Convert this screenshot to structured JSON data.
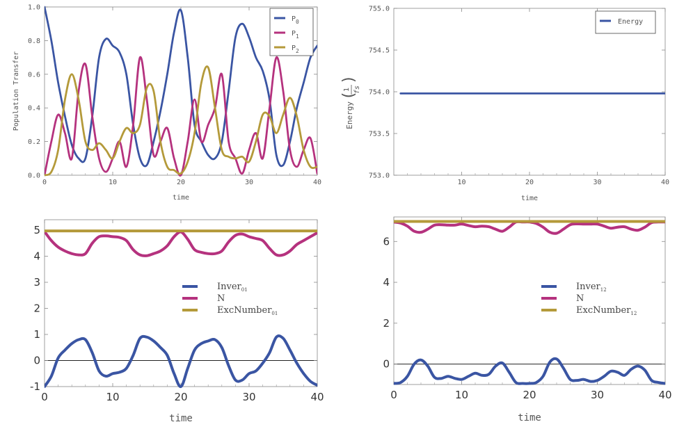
{
  "colors": {
    "p0": "#3a55a3",
    "p1": "#b5327e",
    "p2": "#b49a3a"
  },
  "chart_data": [
    {
      "type": "line",
      "title": "",
      "xlabel": "time",
      "ylabel": "Population Transfer",
      "xlim": [
        0,
        40
      ],
      "ylim": [
        0,
        1
      ],
      "xticks": [
        "0",
        "10",
        "20",
        "30",
        "40"
      ],
      "yticks": [
        "0.0",
        "0.2",
        "0.4",
        "0.6",
        "0.8",
        "1.0"
      ],
      "legend_position": "top-right",
      "series": [
        {
          "name": "P",
          "sub": "0",
          "color_key": "p0",
          "x": [
            0,
            1,
            2,
            3,
            4,
            5,
            6,
            7,
            8,
            9,
            10,
            11,
            12,
            13,
            14,
            15,
            16,
            17,
            18,
            19,
            20,
            21,
            22,
            23,
            24,
            25,
            26,
            27,
            28,
            29,
            30,
            31,
            32,
            33,
            34,
            35,
            36,
            37,
            38,
            39,
            40
          ],
          "values": [
            1.0,
            0.8,
            0.55,
            0.35,
            0.18,
            0.1,
            0.1,
            0.35,
            0.7,
            0.81,
            0.77,
            0.73,
            0.6,
            0.3,
            0.1,
            0.06,
            0.2,
            0.38,
            0.6,
            0.85,
            0.98,
            0.7,
            0.3,
            0.2,
            0.12,
            0.1,
            0.2,
            0.5,
            0.82,
            0.9,
            0.82,
            0.7,
            0.62,
            0.45,
            0.12,
            0.06,
            0.2,
            0.4,
            0.55,
            0.7,
            0.77
          ]
        },
        {
          "name": "P",
          "sub": "1",
          "color_key": "p1",
          "x": [
            0,
            1,
            2,
            3,
            4,
            5,
            6,
            7,
            8,
            9,
            10,
            11,
            12,
            13,
            14,
            15,
            16,
            17,
            18,
            19,
            20,
            21,
            22,
            23,
            24,
            25,
            26,
            27,
            28,
            29,
            30,
            31,
            32,
            33,
            34,
            35,
            36,
            37,
            38,
            39,
            40
          ],
          "values": [
            0.0,
            0.2,
            0.36,
            0.25,
            0.1,
            0.5,
            0.66,
            0.35,
            0.1,
            0.02,
            0.1,
            0.2,
            0.05,
            0.3,
            0.7,
            0.45,
            0.12,
            0.2,
            0.28,
            0.1,
            0.0,
            0.2,
            0.45,
            0.2,
            0.3,
            0.4,
            0.6,
            0.2,
            0.1,
            0.01,
            0.15,
            0.25,
            0.1,
            0.4,
            0.7,
            0.5,
            0.15,
            0.05,
            0.15,
            0.22,
            0.01
          ]
        },
        {
          "name": "P",
          "sub": "2",
          "color_key": "p2",
          "x": [
            0,
            1,
            2,
            3,
            4,
            5,
            6,
            7,
            8,
            9,
            10,
            11,
            12,
            13,
            14,
            15,
            16,
            17,
            18,
            19,
            20,
            21,
            22,
            23,
            24,
            25,
            26,
            27,
            28,
            29,
            30,
            31,
            32,
            33,
            34,
            35,
            36,
            37,
            38,
            39,
            40
          ],
          "values": [
            0.0,
            0.02,
            0.15,
            0.45,
            0.6,
            0.45,
            0.2,
            0.15,
            0.19,
            0.15,
            0.1,
            0.2,
            0.28,
            0.25,
            0.3,
            0.52,
            0.5,
            0.2,
            0.05,
            0.03,
            0.01,
            0.08,
            0.25,
            0.55,
            0.64,
            0.4,
            0.15,
            0.11,
            0.1,
            0.11,
            0.08,
            0.2,
            0.36,
            0.35,
            0.25,
            0.36,
            0.46,
            0.35,
            0.15,
            0.05,
            0.05
          ]
        }
      ]
    },
    {
      "type": "line",
      "title": "",
      "xlabel": "time",
      "ylabel": "Energy",
      "ylabel_unit_num": "1",
      "ylabel_unit_den": "fs",
      "xlim": [
        0,
        40
      ],
      "ylim": [
        753.0,
        755.0
      ],
      "xticks": [
        "10",
        "20",
        "30",
        "40"
      ],
      "yticks": [
        "753.0",
        "753.5",
        "754.0",
        "754.5",
        "755.0"
      ],
      "legend_position": "top-right",
      "series": [
        {
          "name": "Energy",
          "color_key": "p0",
          "x": [
            1,
            40
          ],
          "values": [
            753.98,
            753.98
          ]
        }
      ]
    },
    {
      "type": "line",
      "title": "",
      "xlabel": "time",
      "ylabel": "",
      "xlim": [
        0,
        40
      ],
      "ylim": [
        -1,
        5.4
      ],
      "xticks": [
        "0",
        "10",
        "20",
        "30",
        "40"
      ],
      "yticks": [
        "-1",
        "0",
        "1",
        "2",
        "3",
        "4",
        "5"
      ],
      "legend_position": "center-right",
      "series": [
        {
          "name": "Inver",
          "sub": "01",
          "color_key": "p0",
          "x": [
            0,
            1,
            2,
            3,
            4,
            5,
            6,
            7,
            8,
            9,
            10,
            11,
            12,
            13,
            14,
            15,
            16,
            17,
            18,
            19,
            20,
            21,
            22,
            23,
            24,
            25,
            26,
            27,
            28,
            29,
            30,
            31,
            32,
            33,
            34,
            35,
            36,
            37,
            38,
            39,
            40
          ],
          "values": [
            -1.0,
            -0.6,
            0.1,
            0.4,
            0.65,
            0.8,
            0.8,
            0.3,
            -0.4,
            -0.6,
            -0.5,
            -0.45,
            -0.3,
            0.2,
            0.85,
            0.9,
            0.75,
            0.5,
            0.2,
            -0.5,
            -1.0,
            -0.3,
            0.4,
            0.65,
            0.75,
            0.8,
            0.5,
            -0.2,
            -0.75,
            -0.75,
            -0.5,
            -0.4,
            -0.1,
            0.3,
            0.9,
            0.85,
            0.4,
            -0.1,
            -0.5,
            -0.8,
            -0.95
          ]
        },
        {
          "name": "N",
          "sub": "",
          "color_key": "p1",
          "x": [
            0,
            1,
            2,
            3,
            4,
            5,
            6,
            7,
            8,
            9,
            10,
            11,
            12,
            13,
            14,
            15,
            16,
            17,
            18,
            19,
            20,
            21,
            22,
            23,
            24,
            25,
            26,
            27,
            28,
            29,
            30,
            31,
            32,
            33,
            34,
            35,
            36,
            37,
            38,
            39,
            40
          ],
          "values": [
            4.95,
            4.6,
            4.35,
            4.2,
            4.1,
            4.05,
            4.1,
            4.5,
            4.75,
            4.78,
            4.75,
            4.72,
            4.6,
            4.25,
            4.05,
            4.02,
            4.1,
            4.2,
            4.4,
            4.75,
            4.93,
            4.65,
            4.25,
            4.15,
            4.1,
            4.1,
            4.2,
            4.55,
            4.8,
            4.85,
            4.75,
            4.68,
            4.6,
            4.3,
            4.05,
            4.05,
            4.2,
            4.45,
            4.6,
            4.75,
            4.9
          ]
        },
        {
          "name": "ExcNumber",
          "sub": "01",
          "color_key": "p2",
          "x": [
            0,
            40
          ],
          "values": [
            4.97,
            4.97
          ]
        }
      ]
    },
    {
      "type": "line",
      "title": "",
      "xlabel": "time",
      "ylabel": "",
      "xlim": [
        0,
        40
      ],
      "ylim": [
        -1,
        7.2
      ],
      "xticks": [
        "0",
        "10",
        "20",
        "30",
        "40"
      ],
      "yticks": [
        "0",
        "2",
        "4",
        "6"
      ],
      "legend_position": "center-right",
      "series": [
        {
          "name": "Inver",
          "sub": "12",
          "color_key": "p0",
          "x": [
            0,
            1,
            2,
            3,
            4,
            5,
            6,
            7,
            8,
            9,
            10,
            11,
            12,
            13,
            14,
            15,
            16,
            17,
            18,
            19,
            20,
            21,
            22,
            23,
            24,
            25,
            26,
            27,
            28,
            29,
            30,
            31,
            32,
            33,
            34,
            35,
            36,
            37,
            38,
            39,
            40
          ],
          "values": [
            -0.95,
            -0.9,
            -0.6,
            0.0,
            0.2,
            -0.1,
            -0.65,
            -0.7,
            -0.6,
            -0.7,
            -0.75,
            -0.6,
            -0.45,
            -0.55,
            -0.5,
            -0.1,
            0.05,
            -0.4,
            -0.9,
            -0.95,
            -0.95,
            -0.9,
            -0.6,
            0.1,
            0.25,
            -0.2,
            -0.75,
            -0.8,
            -0.75,
            -0.85,
            -0.8,
            -0.6,
            -0.35,
            -0.4,
            -0.55,
            -0.25,
            -0.1,
            -0.3,
            -0.8,
            -0.9,
            -0.95
          ]
        },
        {
          "name": "N",
          "sub": "",
          "color_key": "p1",
          "x": [
            0,
            1,
            2,
            3,
            4,
            5,
            6,
            7,
            8,
            9,
            10,
            11,
            12,
            13,
            14,
            15,
            16,
            17,
            18,
            19,
            20,
            21,
            22,
            23,
            24,
            25,
            26,
            27,
            28,
            29,
            30,
            31,
            32,
            33,
            34,
            35,
            36,
            37,
            38,
            39,
            40
          ],
          "values": [
            6.95,
            6.9,
            6.75,
            6.5,
            6.45,
            6.6,
            6.8,
            6.82,
            6.8,
            6.8,
            6.85,
            6.78,
            6.72,
            6.75,
            6.72,
            6.6,
            6.5,
            6.7,
            6.95,
            6.95,
            6.95,
            6.88,
            6.7,
            6.45,
            6.4,
            6.6,
            6.82,
            6.86,
            6.85,
            6.85,
            6.85,
            6.75,
            6.65,
            6.7,
            6.72,
            6.6,
            6.55,
            6.7,
            6.92,
            6.95,
            6.95
          ]
        },
        {
          "name": "ExcNumber",
          "sub": "12",
          "color_key": "p2",
          "x": [
            0,
            40
          ],
          "values": [
            6.98,
            6.98
          ]
        }
      ]
    }
  ]
}
